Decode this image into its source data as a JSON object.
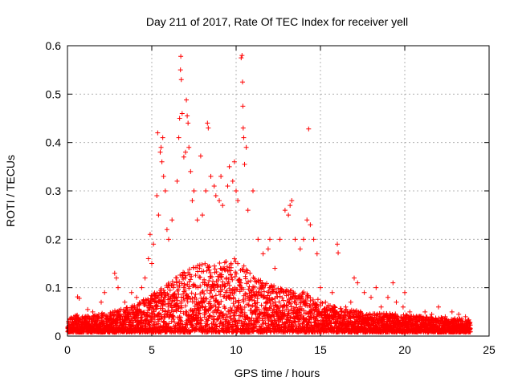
{
  "chart_data": {
    "type": "scatter",
    "title": "Day 211 of 2017, Rate Of TEC Index for receiver yell",
    "xlabel": "GPS time / hours",
    "ylabel": "ROTI / TECUs",
    "xlim": [
      0,
      25
    ],
    "ylim": [
      0,
      0.6
    ],
    "xticks": [
      0,
      5,
      10,
      15,
      20,
      25
    ],
    "yticks": [
      0,
      0.1,
      0.2,
      0.3,
      0.4,
      0.5,
      0.6
    ],
    "grid": true,
    "marker": "+",
    "marker_color": "#ff0000",
    "points": [
      [
        0.6,
        0.081
      ],
      [
        0.7,
        0.078
      ],
      [
        0.9,
        0.04
      ],
      [
        1.2,
        0.055
      ],
      [
        1.5,
        0.05
      ],
      [
        2.0,
        0.07
      ],
      [
        2.2,
        0.09
      ],
      [
        2.8,
        0.13
      ],
      [
        2.9,
        0.12
      ],
      [
        3.0,
        0.1
      ],
      [
        3.4,
        0.07
      ],
      [
        3.8,
        0.09
      ],
      [
        4.1,
        0.08
      ],
      [
        4.4,
        0.1
      ],
      [
        4.6,
        0.12
      ],
      [
        4.8,
        0.16
      ],
      [
        4.9,
        0.21
      ],
      [
        5.0,
        0.15
      ],
      [
        5.1,
        0.19
      ],
      [
        5.3,
        0.29
      ],
      [
        5.35,
        0.42
      ],
      [
        5.4,
        0.25
      ],
      [
        5.5,
        0.38
      ],
      [
        5.55,
        0.39
      ],
      [
        5.6,
        0.36
      ],
      [
        5.65,
        0.41
      ],
      [
        5.7,
        0.33
      ],
      [
        5.8,
        0.3
      ],
      [
        5.9,
        0.22
      ],
      [
        6.0,
        0.2
      ],
      [
        6.2,
        0.24
      ],
      [
        6.5,
        0.32
      ],
      [
        6.6,
        0.41
      ],
      [
        6.65,
        0.45
      ],
      [
        6.7,
        0.55
      ],
      [
        6.72,
        0.578
      ],
      [
        6.75,
        0.53
      ],
      [
        6.8,
        0.46
      ],
      [
        6.9,
        0.37
      ],
      [
        7.0,
        0.38
      ],
      [
        7.05,
        0.488
      ],
      [
        7.1,
        0.455
      ],
      [
        7.15,
        0.44
      ],
      [
        7.2,
        0.39
      ],
      [
        7.3,
        0.34
      ],
      [
        7.4,
        0.28
      ],
      [
        7.5,
        0.3
      ],
      [
        7.7,
        0.24
      ],
      [
        7.9,
        0.372
      ],
      [
        8.0,
        0.25
      ],
      [
        8.2,
        0.3
      ],
      [
        8.3,
        0.44
      ],
      [
        8.35,
        0.43
      ],
      [
        8.5,
        0.33
      ],
      [
        8.7,
        0.31
      ],
      [
        8.8,
        0.29
      ],
      [
        9.0,
        0.28
      ],
      [
        9.1,
        0.33
      ],
      [
        9.2,
        0.27
      ],
      [
        9.5,
        0.31
      ],
      [
        9.6,
        0.35
      ],
      [
        9.8,
        0.32
      ],
      [
        9.9,
        0.36
      ],
      [
        10.0,
        0.3
      ],
      [
        10.1,
        0.28
      ],
      [
        10.3,
        0.575
      ],
      [
        10.35,
        0.58
      ],
      [
        10.38,
        0.525
      ],
      [
        10.4,
        0.475
      ],
      [
        10.42,
        0.43
      ],
      [
        10.45,
        0.41
      ],
      [
        10.5,
        0.355
      ],
      [
        10.6,
        0.39
      ],
      [
        10.7,
        0.26
      ],
      [
        11.0,
        0.3
      ],
      [
        11.3,
        0.2
      ],
      [
        11.6,
        0.17
      ],
      [
        11.9,
        0.18
      ],
      [
        12.0,
        0.2
      ],
      [
        12.3,
        0.14
      ],
      [
        12.6,
        0.2
      ],
      [
        12.9,
        0.26
      ],
      [
        13.1,
        0.25
      ],
      [
        13.2,
        0.27
      ],
      [
        13.3,
        0.28
      ],
      [
        13.5,
        0.2
      ],
      [
        13.8,
        0.18
      ],
      [
        14.0,
        0.2
      ],
      [
        14.2,
        0.24
      ],
      [
        14.3,
        0.428
      ],
      [
        14.4,
        0.23
      ],
      [
        14.6,
        0.2
      ],
      [
        14.8,
        0.17
      ],
      [
        15.0,
        0.1
      ],
      [
        15.3,
        0.07
      ],
      [
        15.7,
        0.09
      ],
      [
        16.0,
        0.19
      ],
      [
        16.05,
        0.172
      ],
      [
        16.5,
        0.06
      ],
      [
        16.8,
        0.07
      ],
      [
        17.0,
        0.12
      ],
      [
        17.2,
        0.11
      ],
      [
        17.6,
        0.09
      ],
      [
        18.0,
        0.08
      ],
      [
        18.3,
        0.1
      ],
      [
        18.6,
        0.06
      ],
      [
        19.0,
        0.08
      ],
      [
        19.3,
        0.11
      ],
      [
        19.5,
        0.07
      ],
      [
        19.9,
        0.06
      ],
      [
        20.0,
        0.09
      ],
      [
        20.3,
        0.05
      ],
      [
        20.8,
        0.04
      ],
      [
        21.2,
        0.05
      ],
      [
        21.6,
        0.045
      ],
      [
        22.0,
        0.06
      ],
      [
        22.4,
        0.04
      ],
      [
        22.8,
        0.05
      ],
      [
        23.2,
        0.045
      ],
      [
        23.6,
        0.04
      ]
    ],
    "density": [
      [
        0.0,
        0.02
      ],
      [
        0.5,
        0.028
      ],
      [
        1.0,
        0.025
      ],
      [
        2.0,
        0.03
      ],
      [
        3.0,
        0.035
      ],
      [
        4.0,
        0.045
      ],
      [
        5.0,
        0.06
      ],
      [
        6.0,
        0.08
      ],
      [
        7.0,
        0.1
      ],
      [
        8.0,
        0.11
      ],
      [
        9.0,
        0.11
      ],
      [
        10.0,
        0.12
      ],
      [
        11.0,
        0.09
      ],
      [
        12.0,
        0.075
      ],
      [
        13.0,
        0.07
      ],
      [
        14.0,
        0.065
      ],
      [
        15.0,
        0.05
      ],
      [
        16.0,
        0.04
      ],
      [
        17.0,
        0.035
      ],
      [
        18.0,
        0.03
      ],
      [
        19.0,
        0.03
      ],
      [
        20.0,
        0.028
      ],
      [
        21.0,
        0.025
      ],
      [
        22.0,
        0.024
      ],
      [
        23.0,
        0.022
      ],
      [
        23.9,
        0.02
      ]
    ]
  }
}
